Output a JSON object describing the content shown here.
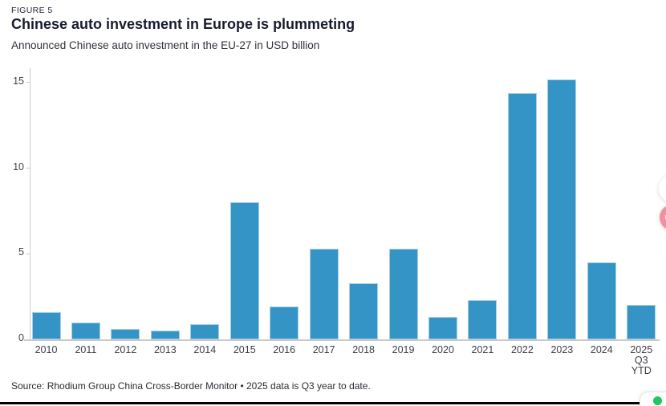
{
  "figure_label": "FIGURE 5",
  "title": "Chinese auto investment in Europe is plummeting",
  "subtitle": "Announced Chinese auto investment in the EU-27 in USD billion",
  "source": "Source: Rhodium Group China Cross-Border Monitor • 2025 data is Q3 year to date.",
  "chart_data": {
    "type": "bar",
    "title": "Chinese auto investment in Europe is plummeting",
    "subtitle": "Announced Chinese auto investment in the EU-27 in USD billion",
    "categories": [
      "2010",
      "2011",
      "2012",
      "2013",
      "2014",
      "2015",
      "2016",
      "2017",
      "2018",
      "2019",
      "2020",
      "2021",
      "2022",
      "2023",
      "2024",
      "2025 Q3 YTD"
    ],
    "values": [
      1.6,
      1.0,
      0.6,
      0.5,
      0.9,
      8.0,
      1.9,
      5.3,
      3.3,
      5.3,
      1.3,
      2.3,
      14.4,
      15.2,
      4.5,
      2.0
    ],
    "xlabel": "",
    "ylabel": "USD billion",
    "y_ticks": [
      0,
      5,
      10,
      15
    ],
    "ylim": [
      0,
      15.8
    ],
    "grid": false,
    "legend_position": "none",
    "bar_color": "#3494c6"
  },
  "colors": {
    "bar": "#3494c6",
    "bar_edge": "#a7cfe6",
    "axis": "#cccccc",
    "accent_pink": "#f2919d",
    "status_green": "#22c55e",
    "bottom_rule": "#000000"
  },
  "widgets": {
    "floating_buttons": [
      {
        "name": "copy-button",
        "icon": "copy-icon"
      },
      {
        "name": "share-button",
        "icon": "share-icon"
      }
    ],
    "chat": {
      "icon": "online-status-dot"
    }
  }
}
